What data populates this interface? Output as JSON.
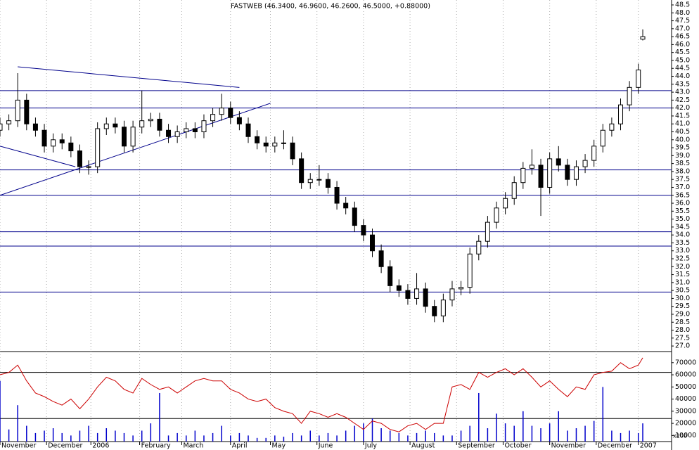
{
  "chart_data": {
    "type": "candlestick",
    "title": "FASTWEB (46.3400, 46.9600, 46.2600, 46.5000, +0.88000)",
    "x": [
      0,
      4,
      8,
      12,
      16,
      20,
      24,
      28,
      32,
      36,
      40,
      44,
      48,
      52,
      56,
      60,
      64,
      68,
      72,
      76,
      80,
      84,
      88,
      92,
      96,
      100,
      104,
      108,
      112,
      116,
      120,
      124,
      128,
      132,
      136,
      140,
      144,
      148,
      152,
      156,
      160,
      164,
      168,
      172,
      176,
      180,
      184,
      188,
      192,
      196,
      200,
      204,
      208,
      212,
      216,
      220,
      224,
      228,
      232,
      236,
      240,
      244,
      248,
      252,
      256,
      260,
      264,
      268,
      272,
      276,
      280,
      284,
      288,
      290
    ],
    "xlim": [
      0,
      303
    ],
    "xticks": [
      {
        "value": 0,
        "label": "November"
      },
      {
        "value": 21,
        "label": "December"
      },
      {
        "value": 41,
        "label": "2006"
      },
      {
        "value": 63,
        "label": "February"
      },
      {
        "value": 82,
        "label": "March"
      },
      {
        "value": 104,
        "label": "April"
      },
      {
        "value": 122,
        "label": "May"
      },
      {
        "value": 143,
        "label": "June"
      },
      {
        "value": 164,
        "label": "July"
      },
      {
        "value": 185,
        "label": "August"
      },
      {
        "value": 206,
        "label": "September"
      },
      {
        "value": 227,
        "label": "October"
      },
      {
        "value": 248,
        "label": "November"
      },
      {
        "value": 269,
        "label": "December"
      },
      {
        "value": 288,
        "label": "2007"
      }
    ],
    "open": [
      40.6,
      41.0,
      41.2,
      42.5,
      41.0,
      40.6,
      39.6,
      40.0,
      39.8,
      39.3,
      38.3,
      38.3,
      40.7,
      41.0,
      40.8,
      39.6,
      40.8,
      41.2,
      41.3,
      40.6,
      40.2,
      40.5,
      40.7,
      40.5,
      41.2,
      41.6,
      42.0,
      41.4,
      41.0,
      40.2,
      39.8,
      39.6,
      39.8,
      39.8,
      38.8,
      37.3,
      37.5,
      37.5,
      37.0,
      36.0,
      35.7,
      34.6,
      34.0,
      33.0,
      32.0,
      30.8,
      30.5,
      30.0,
      30.6,
      29.5,
      28.9,
      29.9,
      30.6,
      30.7,
      32.8,
      33.6,
      34.8,
      35.7,
      36.3,
      37.3,
      38.2,
      38.4,
      37.0,
      38.8,
      38.4,
      37.5,
      38.3,
      38.7,
      39.6,
      40.6,
      41.0,
      42.2,
      43.3,
      46.34
    ],
    "high": [
      41.4,
      41.6,
      44.2,
      42.9,
      41.4,
      41.0,
      40.4,
      40.4,
      40.2,
      39.7,
      38.7,
      41.1,
      41.4,
      41.4,
      41.2,
      41.2,
      43.1,
      41.7,
      41.7,
      41.0,
      40.9,
      41.1,
      41.1,
      41.6,
      42.0,
      42.9,
      42.4,
      41.8,
      41.4,
      40.6,
      40.2,
      40.2,
      40.6,
      40.2,
      39.2,
      37.9,
      38.4,
      37.9,
      37.4,
      36.4,
      36.1,
      35.0,
      34.4,
      33.4,
      32.4,
      31.2,
      30.9,
      31.6,
      31.0,
      29.9,
      30.3,
      31.1,
      31.1,
      33.2,
      34.0,
      35.2,
      36.1,
      36.7,
      37.7,
      38.6,
      39.4,
      38.8,
      39.2,
      39.6,
      38.8,
      38.7,
      39.1,
      40.0,
      41.0,
      41.4,
      42.6,
      43.7,
      44.8,
      46.96
    ],
    "low": [
      40.2,
      40.6,
      40.8,
      40.6,
      40.2,
      39.2,
      39.2,
      39.4,
      38.9,
      37.9,
      37.8,
      37.9,
      40.3,
      40.4,
      39.2,
      39.2,
      40.4,
      40.8,
      40.2,
      39.8,
      39.8,
      40.1,
      40.1,
      40.1,
      40.8,
      41.2,
      41.0,
      40.6,
      39.8,
      39.4,
      39.2,
      39.2,
      39.4,
      38.4,
      36.9,
      36.9,
      37.1,
      36.6,
      35.6,
      35.3,
      34.2,
      33.6,
      32.6,
      31.6,
      30.4,
      30.1,
      29.6,
      29.6,
      29.1,
      28.5,
      28.5,
      29.5,
      30.2,
      30.3,
      32.4,
      33.2,
      34.4,
      35.3,
      35.9,
      36.9,
      37.8,
      35.2,
      36.6,
      38.0,
      37.1,
      37.1,
      37.9,
      38.3,
      39.2,
      40.2,
      40.6,
      41.8,
      42.9,
      46.26
    ],
    "close": [
      41.0,
      41.2,
      42.5,
      41.0,
      40.6,
      39.6,
      40.0,
      39.8,
      39.3,
      38.3,
      38.3,
      40.7,
      41.0,
      40.8,
      39.6,
      40.8,
      41.2,
      41.3,
      40.6,
      40.2,
      40.5,
      40.7,
      40.5,
      41.2,
      41.6,
      42.0,
      41.4,
      41.0,
      40.2,
      39.8,
      39.6,
      39.8,
      39.8,
      38.8,
      37.3,
      37.5,
      37.5,
      37.0,
      36.0,
      35.7,
      34.6,
      34.0,
      33.0,
      32.0,
      30.8,
      30.5,
      30.0,
      30.6,
      29.5,
      28.9,
      29.9,
      30.6,
      30.7,
      32.8,
      33.6,
      34.8,
      35.7,
      36.3,
      37.3,
      38.2,
      38.4,
      37.0,
      38.8,
      38.4,
      37.5,
      38.3,
      38.7,
      39.6,
      40.6,
      41.0,
      42.2,
      43.3,
      44.4,
      46.5
    ],
    "color": "#000000",
    "ylim": [
      26.65,
      48.81
    ],
    "yticks": [
      {
        "value": 27,
        "label": "27.0"
      },
      27.5,
      {
        "value": 28,
        "label": "28.0"
      },
      28.5,
      {
        "value": 29,
        "label": "29.0"
      },
      29.5,
      {
        "value": 30,
        "label": "30.0"
      },
      30.5,
      {
        "value": 31,
        "label": "31.0"
      },
      31.5,
      {
        "value": 32,
        "label": "32.0"
      },
      32.5,
      {
        "value": 33,
        "label": "33.0"
      },
      33.5,
      {
        "value": 34,
        "label": "34.0"
      },
      34.5,
      {
        "value": 35,
        "label": "35.0"
      },
      35.5,
      {
        "value": 36,
        "label": "36.0"
      },
      36.5,
      {
        "value": 37,
        "label": "37.0"
      },
      37.5,
      {
        "value": 38,
        "label": "38.0"
      },
      38.5,
      {
        "value": 39,
        "label": "39.0"
      },
      39.5,
      {
        "value": 40,
        "label": "40.0"
      },
      40.5,
      {
        "value": 41,
        "label": "41.0"
      },
      41.5,
      {
        "value": 42,
        "label": "42.0"
      },
      42.5,
      {
        "value": 43,
        "label": "43.0"
      },
      43.5,
      {
        "value": 44,
        "label": "44.0"
      },
      44.5,
      {
        "value": 45,
        "label": "45.0"
      },
      45.5,
      {
        "value": 46,
        "label": "46.0"
      },
      46.5,
      {
        "value": 47,
        "label": "47.0"
      },
      47.5,
      {
        "value": 48,
        "label": "48.0"
      },
      48.5
    ],
    "levels": [
      43.1,
      42.0,
      38.1,
      36.5,
      34.2,
      33.3,
      30.4
    ],
    "line_color": "#00008b",
    "trendlines": [
      {
        "x": [
          8,
          108
        ],
        "y": [
          44.6,
          43.3
        ]
      },
      {
        "x": [
          0,
          34
        ],
        "y": [
          39.6,
          38.3
        ]
      },
      {
        "x": [
          0,
          122
        ],
        "y": [
          36.5,
          42.3
        ]
      }
    ],
    "grid": true,
    "volume": {
      "values": [
        55000,
        15000,
        35000,
        18000,
        12000,
        14000,
        16000,
        12000,
        10000,
        14000,
        18000,
        12000,
        16000,
        14000,
        12000,
        10000,
        14000,
        20000,
        45000,
        10000,
        12000,
        10000,
        14000,
        10000,
        12000,
        18000,
        10000,
        12000,
        10000,
        8000,
        8000,
        10000,
        9000,
        12000,
        10000,
        14000,
        10000,
        12000,
        10000,
        14000,
        18000,
        20000,
        24000,
        16000,
        14000,
        12000,
        10000,
        12000,
        14000,
        12000,
        10000,
        10000,
        14000,
        18000,
        45000,
        16000,
        28000,
        20000,
        18000,
        30000,
        18000,
        16000,
        20000,
        30000,
        14000,
        16000,
        18000,
        22000,
        50000,
        14000,
        12000,
        14000,
        12000,
        20000
      ],
      "color": "#0000cc",
      "line": {
        "color": "#cc0000",
        "values": [
          60000,
          62000,
          68000,
          55000,
          45000,
          42000,
          38000,
          35000,
          40000,
          32000,
          40000,
          50000,
          58000,
          55000,
          48000,
          45000,
          57000,
          52000,
          48000,
          50000,
          45000,
          50000,
          55000,
          57000,
          55000,
          55000,
          48000,
          45000,
          40000,
          38000,
          40000,
          33000,
          30000,
          28000,
          20000,
          30000,
          28000,
          25000,
          28000,
          25000,
          20000,
          15000,
          22000,
          20000,
          15000,
          13000,
          18000,
          20000,
          15000,
          20000,
          20000,
          50000,
          52000,
          48000,
          62000,
          58000,
          62000,
          65000,
          60000,
          65000,
          58000,
          50000,
          55000,
          48000,
          42000,
          50000,
          48000,
          60000,
          62000,
          63000,
          70000,
          65000,
          68000,
          74000
        ]
      },
      "ylim": [
        5000,
        78000
      ],
      "yticks": [
        10000,
        20000,
        30000,
        40000,
        50000,
        60000,
        70000
      ],
      "levels": [
        62000,
        24000
      ],
      "unit_label": "x100"
    }
  }
}
